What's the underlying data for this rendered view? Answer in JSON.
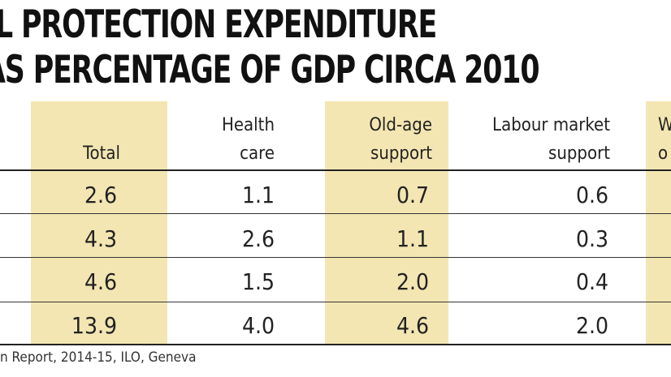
{
  "chart_data": {
    "type": "table",
    "title_line1": "L PROTECTION EXPENDITURE",
    "title_line2": "AS PERCENTAGE OF GDP CIRCA 2010",
    "columns": [
      {
        "key": "total",
        "label_lines": [
          "",
          "Total"
        ]
      },
      {
        "key": "health",
        "label_lines": [
          "Health",
          "care"
        ]
      },
      {
        "key": "oldage",
        "label_lines": [
          "Old-age",
          "support"
        ]
      },
      {
        "key": "labour",
        "label_lines": [
          "Labour market",
          "support"
        ]
      },
      {
        "key": "partial",
        "label_lines": [
          "W",
          "o"
        ]
      }
    ],
    "rows": [
      {
        "total": "2.6",
        "health": "1.1",
        "oldage": "0.7",
        "labour": "0.6"
      },
      {
        "total": "4.3",
        "health": "2.6",
        "oldage": "1.1",
        "labour": "0.3"
      },
      {
        "total": "4.6",
        "health": "1.5",
        "oldage": "2.0",
        "labour": "0.4"
      },
      {
        "total": "13.9",
        "health": "4.0",
        "oldage": "4.6",
        "labour": "2.0"
      }
    ],
    "source": "n Report, 2014-15, ILO, Geneva"
  },
  "colors": {
    "highlight": "#f3e6b2",
    "text": "#222222",
    "rule": "#222222"
  }
}
